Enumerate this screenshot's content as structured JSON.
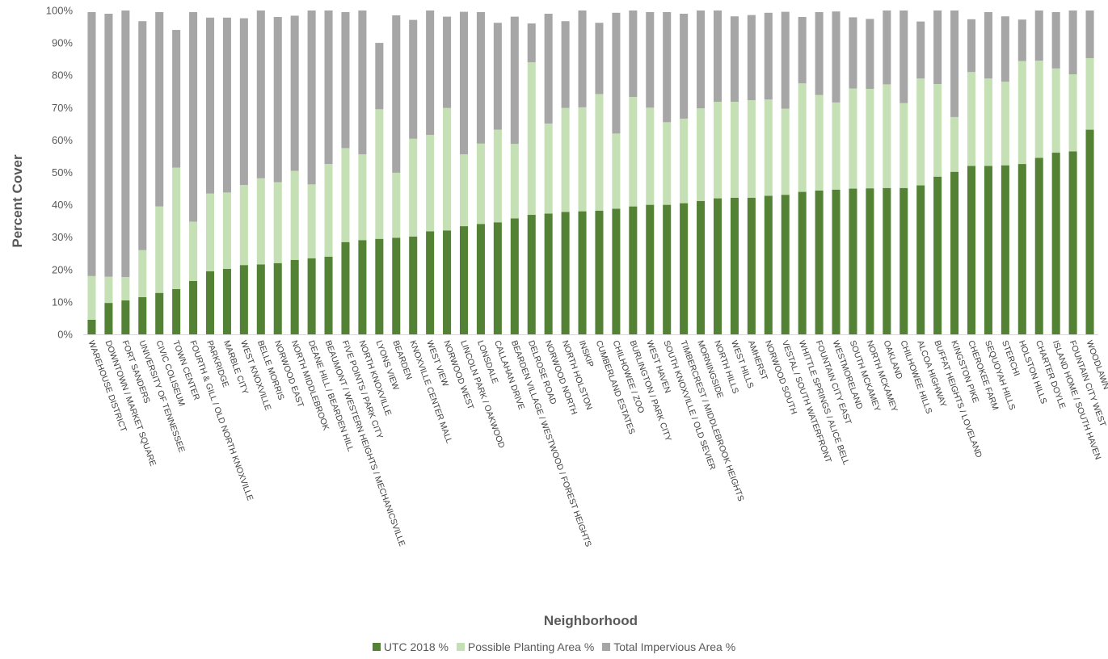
{
  "chart_data": {
    "type": "bar",
    "stacked": true,
    "title": "",
    "xlabel": "Neighborhood",
    "ylabel": "Percent Cover",
    "ylim": [
      0,
      100
    ],
    "y_ticks": [
      "0%",
      "10%",
      "20%",
      "30%",
      "40%",
      "50%",
      "60%",
      "70%",
      "80%",
      "90%",
      "100%"
    ],
    "grid": false,
    "legend_position": "bottom",
    "categories": [
      "WAREHOUSE DISTRICT",
      "DOWNTOWN / MARKET SQUARE",
      "FORT SANDERS",
      "UNIVERSITY OF TENNESSEE",
      "CIVIC COLISEUM",
      "TOWN CENTER",
      "FOURTH & GILL / OLD NORTH KNOXVILLE",
      "PARKRIDGE",
      "MARBLE CITY",
      "WEST KNOXVILLE",
      "BELLE MORRIS",
      "NORWOOD EAST",
      "NORTH MIDDLEBROOK",
      "DEANE HILL / BEARDEN HILL",
      "BEAUMONT / WESTERN HEIGHTS / MECHANICSVILLE",
      "FIVE POINTS / PARK CITY",
      "NORTH KNOXVILLE",
      "LYONS VIEW",
      "BEARDEN",
      "KNOXVILLE CENTER MALL",
      "WEST VIEW",
      "NORWOOD WEST",
      "LINCOLN PARK / OAKWOOD",
      "LONSDALE",
      "CALLAHAN DRIVE",
      "BEARDEN VILLAGE / WESTWOOD / FOREST HEIGHTS",
      "DELROSE ROAD",
      "NORWOOD NORTH",
      "NORTH HOLSTON",
      "INSKIP",
      "CUMBERLAND ESTATES",
      "CHILHOWEE / ZOO",
      "BURLINGTON / PARK CITY",
      "WEST HAVEN",
      "SOUTH KNOXVILLE / OLD SEVIER",
      "TIMBERCREST / MIDDLEBROOK HEIGHTS",
      "MORNINGSIDE",
      "NORTH HILLS",
      "WEST HILLS",
      "AMHERST",
      "NORWOOD SOUTH",
      "VESTAL / SOUTH WATERFRONT",
      "WHITTLE SPRINGS / ALICE BELL",
      "FOUNTAIN CITY EAST",
      "WESTMORELAND",
      "SOUTH MCKAMEY",
      "NORTH MCKAMEY",
      "OAKLAND",
      "CHILHOWEE HILLS",
      "ALCOA HIGHWAY",
      "BUFFAT HEIGHTS / LOVELAND",
      "KINGSTON PIKE",
      "CHEROKEE FARM",
      "SEQUOYAH HILLS",
      "STERCHI",
      "HOLSTON HILLS",
      "CHARTER DOYLE",
      "ISLAND HOME / SOUTH HAVEN",
      "FOUNTAIN CITY WEST",
      "WOODLAWN"
    ],
    "series": [
      {
        "name": "UTC 2018 %",
        "color": "#548235",
        "values": [
          4.5,
          9.7,
          10.5,
          11.5,
          12.8,
          14,
          16.5,
          19.5,
          20.2,
          21.4,
          21.6,
          22,
          23,
          23.5,
          24,
          28.5,
          29.1,
          29.5,
          29.8,
          30.2,
          31.8,
          32.1,
          33.4,
          34.1,
          34.6,
          35.8,
          36.9,
          37.3,
          37.8,
          38,
          38.2,
          38.8,
          39.5,
          40,
          40,
          40.5,
          41.2,
          42,
          42.2,
          42.2,
          42.8,
          43.1,
          44,
          44.4,
          44.7,
          45,
          45.1,
          45.2,
          45.2,
          46,
          48.7,
          50.2,
          52,
          52,
          52.2,
          52.6,
          54.5,
          56.1,
          56.5,
          63.2
        ]
      },
      {
        "name": "Possible Planting Area %",
        "color": "#c5e0b4",
        "values": [
          13.5,
          8.1,
          7.2,
          14.5,
          26.7,
          37.5,
          18.3,
          24,
          23.6,
          24.7,
          26.6,
          25,
          27.5,
          22.8,
          28.6,
          29,
          26.5,
          40,
          20.1,
          30.2,
          29.8,
          37.8,
          22.2,
          24.8,
          28.6,
          23,
          47.1,
          27.8,
          32.1,
          32.1,
          36,
          23.2,
          33.8,
          30,
          25.5,
          26.1,
          28.6,
          29.8,
          29.6,
          30.1,
          29.7,
          26.6,
          33.5,
          29.5,
          26.9,
          30.9,
          30.7,
          32,
          26.2,
          33,
          28.6,
          16.9,
          29,
          27,
          25.8,
          31.8,
          30,
          26,
          23.8,
          22.1
        ]
      },
      {
        "name": "Total Impervious Area %",
        "color": "#a6a6a6",
        "values": [
          81.5,
          81.2,
          82.3,
          70.7,
          60,
          42.5,
          64.7,
          54.3,
          54,
          51.5,
          51.8,
          51,
          47.9,
          53.7,
          47.4,
          42,
          44.4,
          20.5,
          48.6,
          36.7,
          38.4,
          28.2,
          44,
          40.6,
          33,
          39.3,
          12,
          33.9,
          26.8,
          29.9,
          22,
          37.3,
          26.7,
          29.5,
          34,
          32.4,
          30.2,
          28.2,
          26.4,
          26.3,
          26.8,
          29.9,
          20.5,
          25.6,
          28.1,
          22,
          21.6,
          22.8,
          28.6,
          17.6,
          22.7,
          32.9,
          16.3,
          20.5,
          20.2,
          12.8,
          15.5,
          17.4,
          19.7,
          14.7
        ]
      }
    ]
  }
}
